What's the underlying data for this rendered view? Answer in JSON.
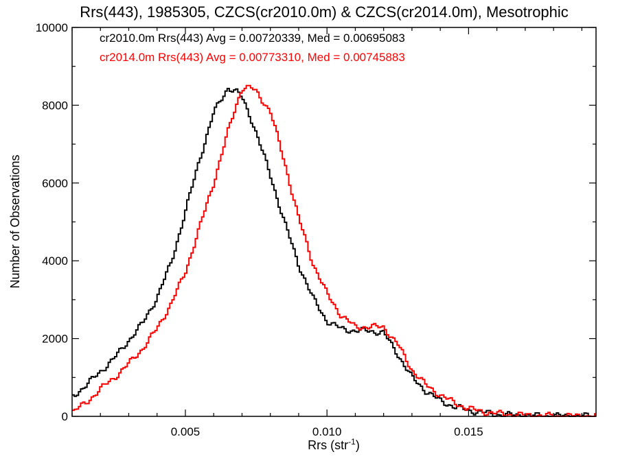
{
  "chart_data": {
    "type": "line",
    "style": "histogram-step",
    "title": "Rrs(443), 1985305, CZCS(cr2010.0m) & CZCS(cr2014.0m), Mesotrophic",
    "xlabel": "Rrs (str",
    "xlabel_sup": "-1",
    "xlabel_end": ")",
    "ylabel": "Number of Observations",
    "xlim": [
      0.001,
      0.0195
    ],
    "ylim": [
      0,
      10000
    ],
    "grid": false,
    "legend_position": "top-left",
    "x_ticks": [
      {
        "value": 0.005,
        "label": "0.005"
      },
      {
        "value": 0.01,
        "label": "0.010"
      },
      {
        "value": 0.015,
        "label": "0.015"
      }
    ],
    "y_ticks": [
      {
        "value": 0,
        "label": "0"
      },
      {
        "value": 2000,
        "label": "2000"
      },
      {
        "value": 4000,
        "label": "4000"
      },
      {
        "value": 6000,
        "label": "6000"
      },
      {
        "value": 8000,
        "label": "8000"
      },
      {
        "value": 10000,
        "label": "10000"
      }
    ],
    "series": [
      {
        "name": "cr2010.0m",
        "legend_text": "cr2010.0m Rrs(443) Avg = 0.00720339, Med = 0.00695083",
        "color": "#000000",
        "x": [
          0.001,
          0.0015,
          0.002,
          0.0025,
          0.003,
          0.0035,
          0.004,
          0.0045,
          0.005,
          0.0055,
          0.006,
          0.0065,
          0.0068,
          0.007,
          0.0073,
          0.0075,
          0.008,
          0.0085,
          0.009,
          0.0095,
          0.01,
          0.0105,
          0.011,
          0.0115,
          0.012,
          0.0125,
          0.013,
          0.0135,
          0.014,
          0.0145,
          0.015,
          0.0155,
          0.016,
          0.017,
          0.018,
          0.0195
        ],
        "y": [
          500,
          800,
          1150,
          1500,
          1950,
          2400,
          3050,
          3950,
          5250,
          6600,
          7800,
          8450,
          8350,
          8200,
          7700,
          7300,
          6200,
          5000,
          3900,
          3050,
          2450,
          2250,
          2200,
          2200,
          2150,
          1600,
          1000,
          650,
          400,
          250,
          150,
          100,
          50,
          20,
          10,
          5
        ]
      },
      {
        "name": "cr2014.0m",
        "legend_text": "cr2014.0m Rrs(443) Avg = 0.00773310, Med = 0.00745883",
        "color": "#ff0000",
        "x": [
          0.001,
          0.0015,
          0.002,
          0.0025,
          0.003,
          0.0035,
          0.004,
          0.0045,
          0.005,
          0.0055,
          0.006,
          0.0065,
          0.0068,
          0.007,
          0.0073,
          0.0075,
          0.008,
          0.0085,
          0.009,
          0.0095,
          0.01,
          0.0105,
          0.011,
          0.0115,
          0.012,
          0.0125,
          0.013,
          0.0135,
          0.014,
          0.0145,
          0.015,
          0.0155,
          0.016,
          0.017,
          0.018,
          0.0195
        ],
        "y": [
          100,
          350,
          700,
          1000,
          1350,
          1750,
          2250,
          2900,
          3700,
          4850,
          6000,
          7300,
          8000,
          8450,
          8450,
          8350,
          7850,
          6550,
          5100,
          3950,
          3150,
          2600,
          2300,
          2300,
          2300,
          1850,
          1200,
          800,
          550,
          350,
          200,
          120,
          70,
          30,
          10,
          5
        ]
      }
    ]
  }
}
